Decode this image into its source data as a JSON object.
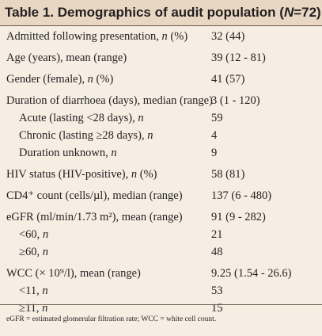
{
  "table": {
    "title_prefix": "Table 1. Demographics of audit population (",
    "title_n": "N",
    "title_suffix": "=72)",
    "rows": [
      {
        "label": "Admitted following presentation, ",
        "label_em": "n",
        "label_tail": " (%)",
        "value": "32 (44)"
      },
      {
        "label": "Age (years), mean (range)",
        "label_em": "",
        "label_tail": "",
        "value": "39 (12 - 81)"
      },
      {
        "label": "Gender (female), ",
        "label_em": "n",
        "label_tail": " (%)",
        "value": "41 (57)"
      },
      {
        "label": "Duration of diarrhoea (days), median (range)",
        "label_em": "",
        "label_tail": "",
        "value": "3 (1 - 120)"
      },
      {
        "label": "Acute (lasting <28 days), ",
        "label_em": "n",
        "label_tail": "",
        "value": "59"
      },
      {
        "label": "Chronic (lasting ≥28 days), ",
        "label_em": "n",
        "label_tail": "",
        "value": "4"
      },
      {
        "label": "Duration unknown, ",
        "label_em": "n",
        "label_tail": "",
        "value": "9"
      },
      {
        "label": "HIV status (HIV-positive), ",
        "label_em": "n",
        "label_tail": " (%)",
        "value": "58 (81)"
      },
      {
        "label": "CD4⁺ count (cells/µl), median (range)",
        "label_em": "",
        "label_tail": "",
        "value": "137 (6 - 480)"
      },
      {
        "label": "eGFR (ml/min/1.73 m²), mean (range)",
        "label_em": "",
        "label_tail": "",
        "value": "91 (9 - 282)"
      },
      {
        "label": "<60, ",
        "label_em": "n",
        "label_tail": "",
        "value": "21"
      },
      {
        "label": "≥60, ",
        "label_em": "n",
        "label_tail": "",
        "value": "48"
      },
      {
        "label": "WCC (× 10⁹/l), mean (range)",
        "label_em": "",
        "label_tail": "",
        "value": "9.25 (1.54 - 26.6)"
      },
      {
        "label": "<11, ",
        "label_em": "n",
        "label_tail": "",
        "value": "53"
      },
      {
        "label": "≥11, ",
        "label_em": "n",
        "label_tail": "",
        "value": "15"
      }
    ],
    "footnote": "eGFR = estimated glomerular filtration rate; WCC = white cell count."
  }
}
